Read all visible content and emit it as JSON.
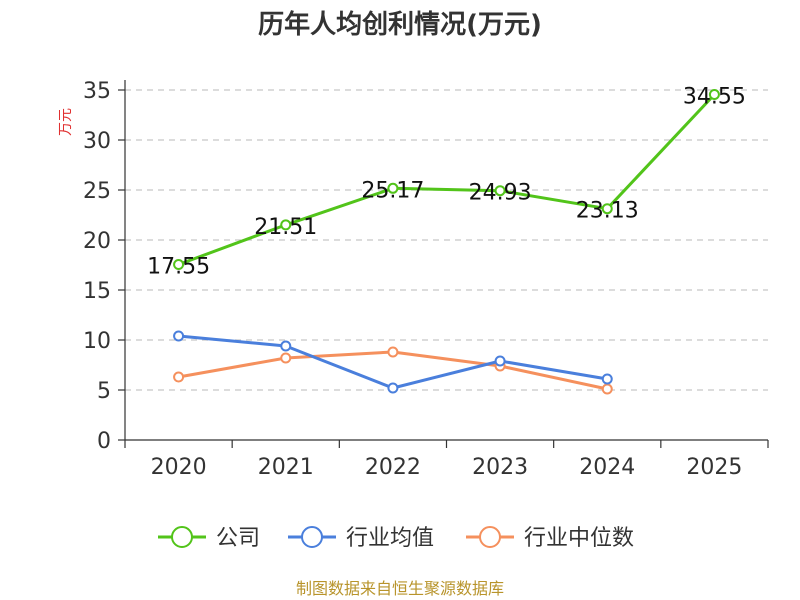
{
  "chart_data": {
    "type": "line",
    "title": "历年人均创利情况(万元)",
    "ylabel": "万元",
    "xlabel": "",
    "categories": [
      "2020",
      "2021",
      "2022",
      "2023",
      "2024",
      "2025"
    ],
    "ylim": [
      0,
      35
    ],
    "yticks": [
      0,
      5,
      10,
      15,
      20,
      25,
      30,
      35
    ],
    "grid": true,
    "legend_position": "bottom",
    "series": [
      {
        "name": "公司",
        "color": "#52c41a",
        "values": [
          17.55,
          21.51,
          25.17,
          24.93,
          23.13,
          34.55
        ],
        "labels": [
          "17.55",
          "21.51",
          "25.17",
          "24.93",
          "23.13",
          "34.55"
        ]
      },
      {
        "name": "行业均值",
        "color": "#4a7fdc",
        "values": [
          10.4,
          9.4,
          5.2,
          7.9,
          6.1,
          null
        ]
      },
      {
        "name": "行业中位数",
        "color": "#f5905d",
        "values": [
          6.3,
          8.2,
          8.8,
          7.4,
          5.1,
          null
        ]
      }
    ],
    "source": "制图数据来自恒生聚源数据库"
  }
}
